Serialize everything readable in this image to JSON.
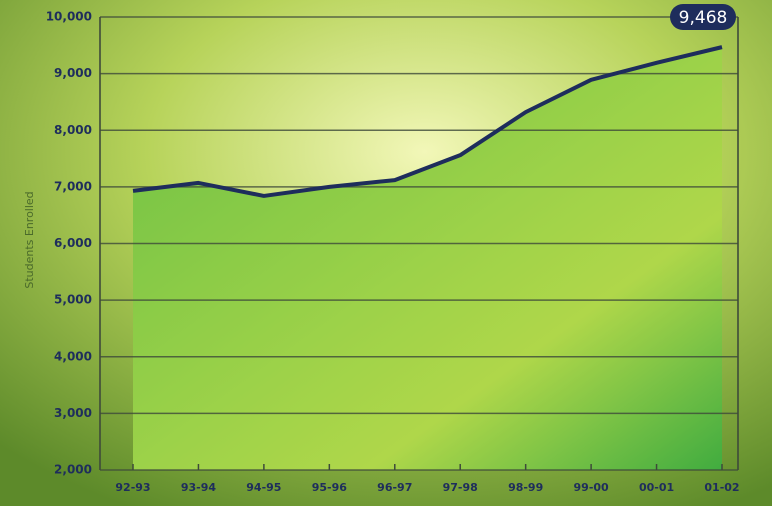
{
  "chart_data": {
    "type": "area",
    "y_label": "Students Enrolled",
    "categories": [
      "92-93",
      "93-94",
      "94-95",
      "95-96",
      "96-97",
      "97-98",
      "98-99",
      "99-00",
      "00-01",
      "01-02"
    ],
    "values": [
      6930,
      7070,
      6840,
      7000,
      7120,
      7560,
      8320,
      8890,
      9190,
      9468
    ],
    "value_labels": [
      null,
      null,
      null,
      null,
      null,
      null,
      null,
      null,
      null,
      "9,468"
    ],
    "line_color": "#1e2d5c",
    "fill_color": "#4cb648",
    "ylim": [
      2000,
      10000
    ],
    "yticks": [
      {
        "value": 2000,
        "label": "2,000"
      },
      {
        "value": 3000,
        "label": "3,000"
      },
      {
        "value": 4000,
        "label": "4,000"
      },
      {
        "value": 5000,
        "label": "5,000"
      },
      {
        "value": 6000,
        "label": "6,000"
      },
      {
        "value": 7000,
        "label": "7,000"
      },
      {
        "value": 8000,
        "label": "8,000"
      },
      {
        "value": 9000,
        "label": "9,000"
      },
      {
        "value": 10000,
        "label": "10,000"
      }
    ],
    "grid": true
  }
}
